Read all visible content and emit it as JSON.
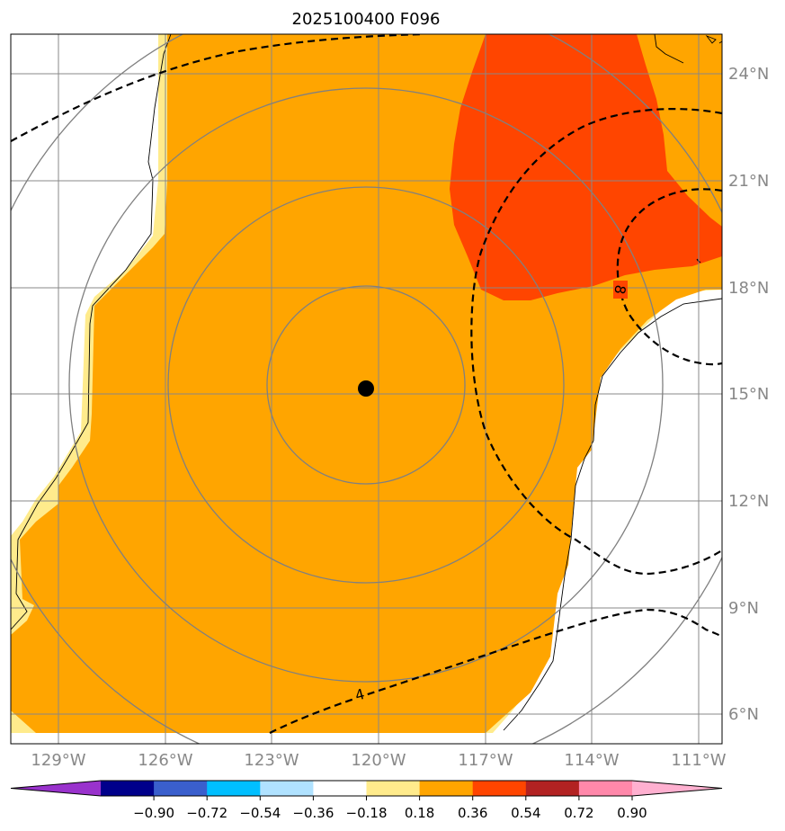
{
  "title": "2025100400 F096",
  "map": {
    "lat_labels": [
      "24°N",
      "21°N",
      "18°N",
      "15°N",
      "12°N",
      "9°N",
      "6°N"
    ],
    "lon_labels": [
      "129°W",
      "126°W",
      "123°W",
      "120°W",
      "117°W",
      "114°W",
      "111°W"
    ],
    "contour_labels": [
      {
        "text": "4",
        "value": 4
      },
      {
        "text": "8",
        "value": 8
      }
    ],
    "storm_center": {
      "lat": 15.2,
      "lon": -120.3
    },
    "range_rings": 4,
    "colors": {
      "fill_main": "#ffa500",
      "fill_edge": "#ffeb8c",
      "fill_high": "#ff4500",
      "grid": "#888888",
      "contour": "#000000"
    }
  },
  "colorbar": {
    "tick_labels": [
      "−0.90",
      "−0.72",
      "−0.54",
      "−0.36",
      "−0.18",
      "0.18",
      "0.36",
      "0.54",
      "0.72",
      "0.90"
    ],
    "ticks": [
      -0.9,
      -0.72,
      -0.54,
      -0.36,
      -0.18,
      0.18,
      0.36,
      0.54,
      0.72,
      0.9
    ],
    "colors": [
      "#9932cc",
      "#00008b",
      "#3a5fcd",
      "#00bfff",
      "#b0e2ff",
      "#ffffff",
      "#ffeb8c",
      "#ffa500",
      "#ff4500",
      "#b22222",
      "#ff88aa",
      "#ffb0d0"
    ]
  }
}
